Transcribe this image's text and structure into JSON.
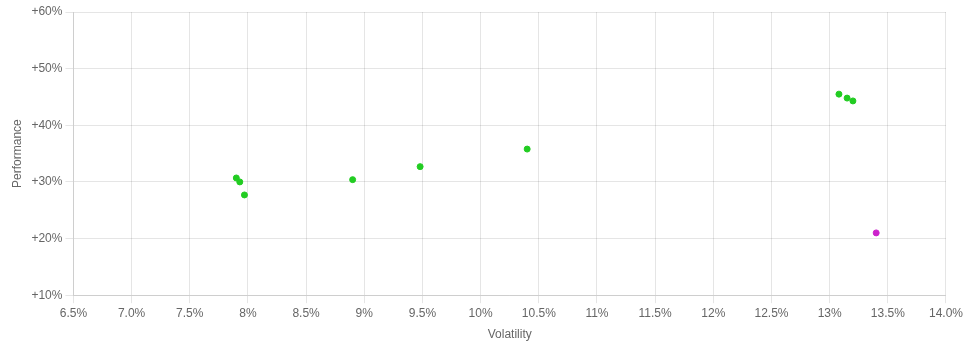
{
  "chart_data": {
    "type": "scatter",
    "xlabel": "Volatility",
    "ylabel": "Performance",
    "series": [
      {
        "color": "#22cc22",
        "x": [
          0.079,
          0.0793,
          0.0797,
          0.089,
          0.0948,
          0.104,
          0.1308,
          0.1315,
          0.132
        ],
        "values": [
          0.307,
          0.3,
          0.277,
          0.304,
          0.327,
          0.358,
          0.455,
          0.448,
          0.443
        ]
      },
      {
        "color": "#cc22cc",
        "x": [
          0.134
        ],
        "values": [
          0.21
        ]
      }
    ],
    "xlim": [
      0.065,
      0.14
    ],
    "ylim": [
      0.1,
      0.6
    ],
    "xticks": [
      {
        "value": 0.065,
        "label": "6.5%"
      },
      {
        "value": 0.07,
        "label": "7.0%"
      },
      {
        "value": 0.075,
        "label": "7.5%"
      },
      {
        "value": 0.08,
        "label": "8%"
      },
      {
        "value": 0.085,
        "label": "8.5%"
      },
      {
        "value": 0.09,
        "label": "9%"
      },
      {
        "value": 0.095,
        "label": "9.5%"
      },
      {
        "value": 0.1,
        "label": "10%"
      },
      {
        "value": 0.105,
        "label": "10.5%"
      },
      {
        "value": 0.11,
        "label": "11%"
      },
      {
        "value": 0.115,
        "label": "11.5%"
      },
      {
        "value": 0.12,
        "label": "12%"
      },
      {
        "value": 0.125,
        "label": "12.5%"
      },
      {
        "value": 0.13,
        "label": "13%"
      },
      {
        "value": 0.135,
        "label": "13.5%"
      },
      {
        "value": 0.14,
        "label": "14.0%"
      }
    ],
    "yticks": [
      {
        "value": 0.1,
        "label": "+10%"
      },
      {
        "value": 0.2,
        "label": "+20%"
      },
      {
        "value": 0.3,
        "label": "+30%"
      },
      {
        "value": 0.4,
        "label": "+40%"
      },
      {
        "value": 0.5,
        "label": "+50%"
      },
      {
        "value": 0.6,
        "label": "+60%"
      }
    ],
    "grid": true
  }
}
